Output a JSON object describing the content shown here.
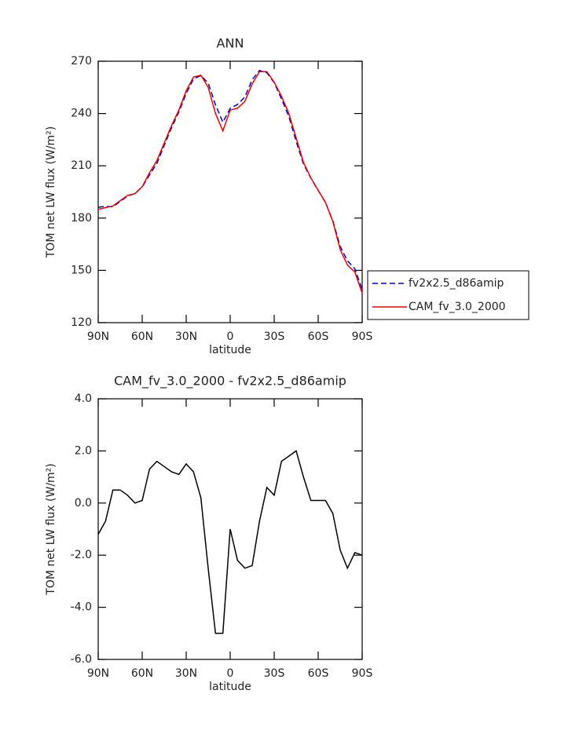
{
  "chart_data": [
    {
      "type": "line",
      "title": "ANN",
      "xlabel": "latitude",
      "ylabel": "TOM net LW flux (W/m²)",
      "x": [
        90,
        85,
        80,
        75,
        70,
        65,
        60,
        55,
        50,
        45,
        40,
        35,
        30,
        25,
        20,
        15,
        10,
        5,
        0,
        -5,
        -10,
        -15,
        -20,
        -25,
        -30,
        -35,
        -40,
        -45,
        -50,
        -55,
        -60,
        -65,
        -70,
        -75,
        -80,
        -85,
        -90
      ],
      "xlim": [
        90,
        -90
      ],
      "xticks": [
        {
          "value": 90,
          "label": "90N"
        },
        {
          "value": 60,
          "label": "60N"
        },
        {
          "value": 30,
          "label": "30N"
        },
        0,
        {
          "value": -30,
          "label": "30S"
        },
        {
          "value": -60,
          "label": "60S"
        },
        {
          "value": -90,
          "label": "90S"
        }
      ],
      "ylim": [
        120,
        270
      ],
      "yticks": [
        120,
        150,
        180,
        210,
        240,
        270
      ],
      "legend": "outside-right",
      "series": [
        {
          "name": "fv2x2.5_d86amip",
          "color": "#0000cc",
          "dash": true,
          "values": [
            186.2,
            186.7,
            186.5,
            189.5,
            192.7,
            194,
            197.9,
            204.7,
            211.4,
            221.6,
            231.8,
            240.9,
            251.5,
            259.8,
            261.8,
            257.5,
            245,
            235,
            243,
            245.2,
            249.5,
            259.4,
            264.7,
            263.4,
            257.7,
            248.4,
            238.2,
            224,
            211,
            202.9,
            195.9,
            188.9,
            178.4,
            163.8,
            155.5,
            150.9,
            139
          ]
        },
        {
          "name": "CAM_fv_3.0_2000",
          "color": "#ee0000",
          "dash": false,
          "values": [
            185,
            186,
            187,
            190,
            193,
            194,
            198,
            206,
            213,
            223,
            233,
            242,
            253,
            261,
            262,
            255,
            240,
            230,
            242,
            243,
            247,
            257,
            264,
            264,
            258,
            250,
            240,
            226,
            212,
            203,
            196,
            189,
            178,
            162,
            153,
            149,
            137
          ]
        }
      ]
    },
    {
      "type": "line",
      "title": "CAM_fv_3.0_2000 - fv2x2.5_d86amip",
      "xlabel": "latitude",
      "ylabel": "TOM net LW flux (W/m²)",
      "x": [
        90,
        85,
        80,
        75,
        70,
        65,
        60,
        55,
        50,
        45,
        40,
        35,
        30,
        25,
        20,
        15,
        10,
        5,
        0,
        -5,
        -10,
        -15,
        -20,
        -25,
        -30,
        -35,
        -40,
        -45,
        -50,
        -55,
        -60,
        -65,
        -70,
        -75,
        -80,
        -85,
        -90
      ],
      "xlim": [
        90,
        -90
      ],
      "xticks": [
        {
          "value": 90,
          "label": "90N"
        },
        {
          "value": 60,
          "label": "60N"
        },
        {
          "value": 30,
          "label": "30N"
        },
        0,
        {
          "value": -30,
          "label": "30S"
        },
        {
          "value": -60,
          "label": "60S"
        },
        {
          "value": -90,
          "label": "90S"
        }
      ],
      "ylim": [
        -6,
        4
      ],
      "yticks": [
        {
          "value": -6,
          "label": "-6.0"
        },
        {
          "value": -4,
          "label": "-4.0"
        },
        {
          "value": -2,
          "label": "-2.0"
        },
        {
          "value": 0,
          "label": "0.0"
        },
        {
          "value": 2,
          "label": "2.0"
        },
        {
          "value": 4,
          "label": "4.0"
        }
      ],
      "series": [
        {
          "color": "#000000",
          "dash": false,
          "values": [
            -1.2,
            -0.7,
            0.5,
            0.5,
            0.3,
            0,
            0.1,
            1.3,
            1.6,
            1.4,
            1.2,
            1.1,
            1.5,
            1.2,
            0.2,
            -2.5,
            -5,
            -5,
            -1,
            -2.2,
            -2.5,
            -2.4,
            -0.7,
            0.6,
            0.3,
            1.6,
            1.8,
            2,
            1,
            0.1,
            0.1,
            0.1,
            -0.4,
            -1.8,
            -2.5,
            -1.9,
            -2
          ]
        }
      ]
    }
  ]
}
